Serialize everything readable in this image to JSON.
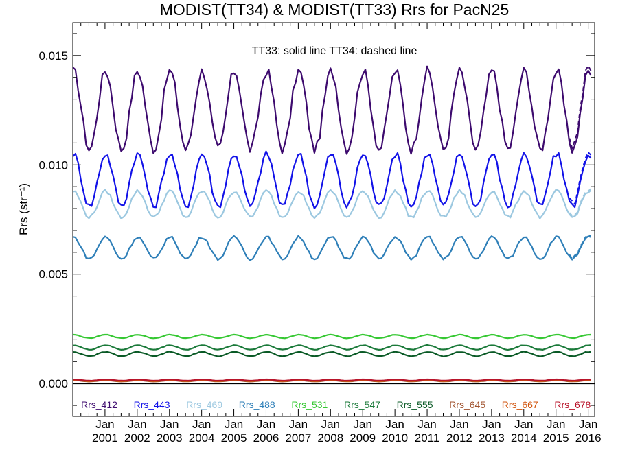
{
  "chart_data": {
    "type": "line",
    "title": "MODIST(TT34) & MODIST(TT33)  Rrs for PacN25",
    "annotation": "TT33: solid line   TT34: dashed line",
    "ylabel": "Rrs (str⁻¹)",
    "xlabel": "",
    "ylim": [
      -0.0015,
      0.0165
    ],
    "yticks": [
      0.0,
      0.005,
      0.01,
      0.015
    ],
    "ytick_labels": [
      "0.000",
      "0.005",
      "0.010",
      "0.015"
    ],
    "x_start_year": 2000.0,
    "x_end_year": 2016.2,
    "xticks": [
      {
        "month": "Jan",
        "year": "2001"
      },
      {
        "month": "Jan",
        "year": "2002"
      },
      {
        "month": "Jan",
        "year": "2003"
      },
      {
        "month": "Jan",
        "year": "2004"
      },
      {
        "month": "Jan",
        "year": "2005"
      },
      {
        "month": "Jan",
        "year": "2006"
      },
      {
        "month": "Jan",
        "year": "2007"
      },
      {
        "month": "Jan",
        "year": "2008"
      },
      {
        "month": "Jan",
        "year": "2009"
      },
      {
        "month": "Jan",
        "year": "2010"
      },
      {
        "month": "Jan",
        "year": "2011"
      },
      {
        "month": "Jan",
        "year": "2012"
      },
      {
        "month": "Jan",
        "year": "2013"
      },
      {
        "month": "Jan",
        "year": "2014"
      },
      {
        "month": "Jan",
        "year": "2015"
      },
      {
        "month": "Jan",
        "year": "2016"
      }
    ],
    "zero_line": true,
    "grid": false,
    "legend_placement": "bottom (inside plot, single row)",
    "series": [
      {
        "name": "Rrs_412",
        "color": "#3d0a6e",
        "mean": 0.0125,
        "amplitude": 0.0018
      },
      {
        "name": "Rrs_443",
        "color": "#1212e8",
        "mean": 0.0093,
        "amplitude": 0.0012
      },
      {
        "name": "Rrs_469",
        "color": "#9cc8e0",
        "mean": 0.0082,
        "amplitude": 0.0006
      },
      {
        "name": "Rrs_488",
        "color": "#2e7fb8",
        "mean": 0.0062,
        "amplitude": 0.0005
      },
      {
        "name": "Rrs_531",
        "color": "#36c833",
        "mean": 0.00215,
        "amplitude": 8e-05
      },
      {
        "name": "Rrs_547",
        "color": "#1b7a3a",
        "mean": 0.00165,
        "amplitude": 0.0001
      },
      {
        "name": "Rrs_555",
        "color": "#0a5a26",
        "mean": 0.00135,
        "amplitude": 0.0001
      },
      {
        "name": "Rrs_645",
        "color": "#a0522d",
        "mean": 0.00012,
        "amplitude": 3e-05
      },
      {
        "name": "Rrs_667",
        "color": "#d2560f",
        "mean": 0.00014,
        "amplitude": 3e-05
      },
      {
        "name": "Rrs_678",
        "color": "#b8142a",
        "mean": 0.00016,
        "amplitude": 3e-05
      }
    ],
    "line_styles": {
      "TT33": "solid",
      "TT34": "dashed"
    }
  }
}
